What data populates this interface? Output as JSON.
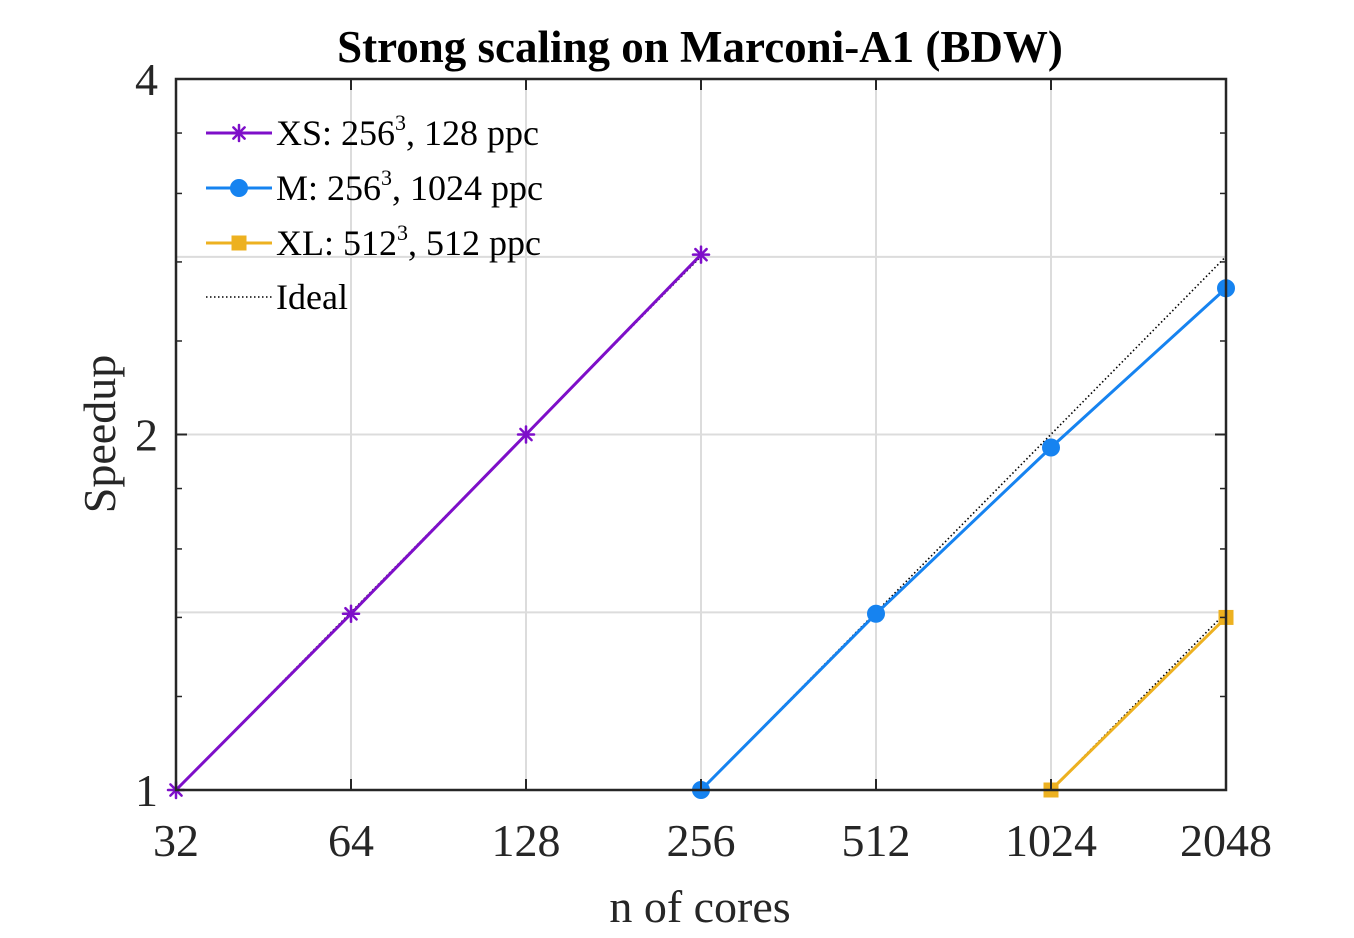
{
  "chart_data": {
    "type": "line",
    "title": "Strong scaling on Marconi-A1 (BDW)",
    "xlabel": "n of cores",
    "ylabel": "Speedup",
    "x_scale": "log2",
    "y_scale": "log2",
    "xlim": [
      32,
      2048
    ],
    "ylim": [
      1,
      4
    ],
    "x_ticks": [
      32,
      64,
      128,
      256,
      512,
      1024,
      2048
    ],
    "x_tick_labels": [
      "32",
      "64",
      "128",
      "256",
      "512",
      "1024",
      "2048"
    ],
    "y_ticks": [
      1,
      2,
      4
    ],
    "y_tick_labels": [
      "1",
      "2",
      "4"
    ],
    "y_minor_grid": [
      1.414,
      2.828
    ],
    "grid": true,
    "legend_position": "top-left",
    "series": [
      {
        "name": "XS",
        "legend": {
          "prefix": "XS: 256",
          "sup": "3",
          "suffix": ", 128 ppc"
        },
        "color": "#7e0fc9",
        "marker": "asterisk",
        "x": [
          32,
          64,
          128,
          256
        ],
        "y": [
          1.0,
          1.41,
          2.0,
          2.84
        ]
      },
      {
        "name": "M",
        "legend": {
          "prefix": "M: 256",
          "sup": "3",
          "suffix": ", 1024 ppc"
        },
        "color": "#1683f0",
        "marker": "circle",
        "x": [
          256,
          512,
          1024,
          2048
        ],
        "y": [
          1.0,
          1.41,
          1.95,
          2.66
        ]
      },
      {
        "name": "XL",
        "legend": {
          "prefix": "XL: 512",
          "sup": "3",
          "suffix": ", 512 ppc"
        },
        "color": "#edb120",
        "marker": "square",
        "x": [
          1024,
          2048
        ],
        "y": [
          1.0,
          1.4
        ]
      },
      {
        "name": "Ideal",
        "legend": {
          "prefix": "Ideal",
          "sup": "",
          "suffix": ""
        },
        "color": "#000000",
        "marker": "none",
        "dotted": true,
        "segments": [
          {
            "x": [
              32,
              256
            ],
            "y": [
              1,
              2.83
            ]
          },
          {
            "x": [
              256,
              2048
            ],
            "y": [
              1,
              2.83
            ]
          },
          {
            "x": [
              1024,
              2048
            ],
            "y": [
              1,
              1.414
            ]
          }
        ]
      }
    ]
  }
}
